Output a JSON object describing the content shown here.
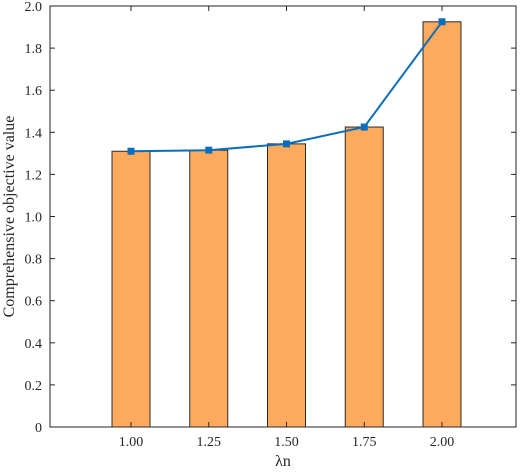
{
  "chart_data": {
    "type": "bar",
    "xlabel": "λn",
    "ylabel": "Comprehensive objective value",
    "categories": [
      "1.00",
      "1.25",
      "1.50",
      "1.75",
      "2.00"
    ],
    "values": [
      1.31,
      1.315,
      1.345,
      1.425,
      1.925
    ],
    "line_values": [
      1.31,
      1.315,
      1.345,
      1.425,
      1.925
    ],
    "ylim": [
      0,
      2.0
    ],
    "yticks": [
      "0",
      "0.2",
      "0.4",
      "0.6",
      "0.8",
      "1.0",
      "1.2",
      "1.4",
      "1.6",
      "1.8",
      "2.0"
    ],
    "grid": false,
    "legend": "none",
    "colors": {
      "bar": "#FDAA5D",
      "bar_edge": "#2b2b2b",
      "line": "#0C6DBA",
      "marker": "#0C6DBA",
      "axis": "#262626"
    }
  }
}
